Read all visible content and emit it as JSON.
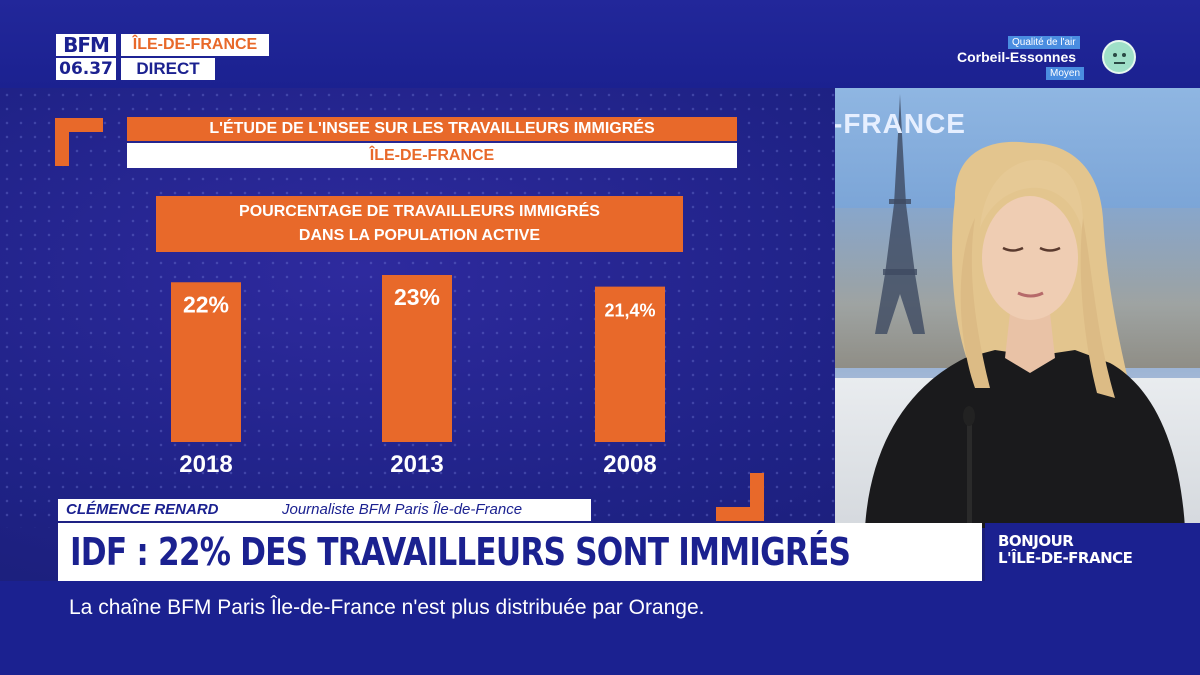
{
  "channel": {
    "logo": "BFM",
    "time": "06.37",
    "region": "ÎLE-DE-FRANCE",
    "live": "DIRECT"
  },
  "air_quality": {
    "label": "Qualité de l'air",
    "city": "Corbeil-Essonnes",
    "status": "Moyen",
    "icon": "neutral-face-icon",
    "color": "#9fe0c8"
  },
  "studio": {
    "screen_text": "-FRANCE"
  },
  "chart_header": {
    "title": "L'ÉTUDE DE L'INSEE SUR LES TRAVAILLEURS IMMIGRÉS",
    "subtitle": "ÎLE-DE-FRANCE"
  },
  "chart_data": {
    "type": "bar",
    "title_lines": [
      "POURCENTAGE DE TRAVAILLEURS IMMIGRÉS",
      "DANS LA POPULATION ACTIVE"
    ],
    "categories": [
      "2018",
      "2013",
      "2008"
    ],
    "values": [
      22,
      23,
      21.4
    ],
    "value_labels": [
      "22%",
      "23%",
      "21,4%"
    ],
    "ylim": [
      0,
      23
    ],
    "bar_color": "#e8692a",
    "grid": false,
    "legend": "none"
  },
  "lower_third": {
    "name": "CLÉMENCE RENARD",
    "role": "Journaliste BFM Paris Île-de-France",
    "headline": "IDF : 22% DES TRAVAILLEURS SONT IMMIGRÉS",
    "show_line1": "BONJOUR",
    "show_line2": "L'ÎLE-DE-FRANCE",
    "ticker": "La chaîne BFM Paris Île-de-France n'est plus distribuée par Orange."
  },
  "colors": {
    "accent": "#e8692a",
    "brand": "#1b2190"
  }
}
